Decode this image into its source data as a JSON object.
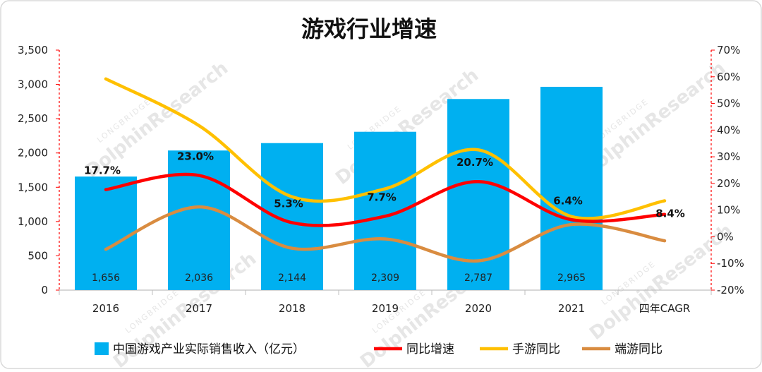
{
  "chart_data": {
    "type": "bar",
    "title": "游戏行业增速",
    "categories": [
      "2016",
      "2017",
      "2018",
      "2019",
      "2020",
      "2021",
      "四年CAGR"
    ],
    "ylim_left": [
      0,
      3500
    ],
    "left_ticks": [
      "0",
      "500",
      "1,000",
      "1,500",
      "2,000",
      "2,500",
      "3,000",
      "3,500"
    ],
    "ylim_right": [
      -20,
      70
    ],
    "right_ticks": [
      "-20%",
      "-10%",
      "0%",
      "10%",
      "20%",
      "30%",
      "40%",
      "50%",
      "60%",
      "70%"
    ],
    "bar_series": {
      "name": "中国游戏产业实际销售收入（亿元）",
      "values": [
        1656,
        2036,
        2144,
        2309,
        2787,
        2965
      ],
      "labels": [
        "1,656",
        "2,036",
        "2,144",
        "2,309",
        "2,787",
        "2,965"
      ],
      "color": "#00b0f0"
    },
    "line_series": [
      {
        "name": "同比增速",
        "color": "#ff0000",
        "values": [
          17.7,
          23.0,
          5.3,
          7.7,
          20.7,
          6.4,
          8.4
        ],
        "labels": [
          "17.7%",
          "23.0%",
          "5.3%",
          "7.7%",
          "20.7%",
          "6.4%",
          "8.4%"
        ]
      },
      {
        "name": "手游同比",
        "color": "#ffc000",
        "values": [
          59.2,
          41.7,
          15.0,
          18.0,
          32.6,
          7.6,
          13.5
        ]
      },
      {
        "name": "端游同比",
        "color": "#d98c40",
        "values": [
          -4.7,
          11.2,
          -4.3,
          -0.8,
          -9.0,
          4.6,
          -1.5
        ]
      }
    ],
    "legend_position": "bottom",
    "grid": false,
    "watermark": [
      "LONGBRIDGE",
      "DolphinResearch"
    ]
  }
}
